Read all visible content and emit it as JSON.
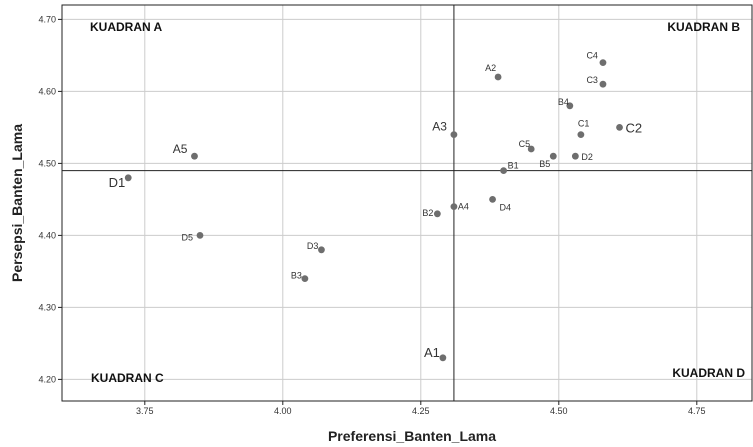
{
  "chart_data": {
    "type": "scatter",
    "title": "",
    "xlabel": "Preferensi_Banten_Lama",
    "ylabel": "Persepsi_Banten_Lama",
    "xlim": [
      3.6,
      4.85
    ],
    "ylim": [
      4.17,
      4.72
    ],
    "xticks": [
      "3.75",
      "4.00",
      "4.25",
      "4.50",
      "4.75"
    ],
    "yticks": [
      "4.20",
      "4.30",
      "4.40",
      "4.50",
      "4.60",
      "4.70"
    ],
    "grid": true,
    "reference_lines": {
      "x": 4.31,
      "y": 4.49
    },
    "quadrants": {
      "a": "KUADRAN A",
      "b": "KUADRAN B",
      "c": "KUADRAN C",
      "d": "KUADRAN D"
    },
    "point_color": "#6e6e6e",
    "line_color": "#222222",
    "grid_color": "#cccccc",
    "points": [
      {
        "label": "A1",
        "x": 4.29,
        "y": 4.23
      },
      {
        "label": "A2",
        "x": 4.39,
        "y": 4.62
      },
      {
        "label": "A3",
        "x": 4.31,
        "y": 4.54
      },
      {
        "label": "A4",
        "x": 4.31,
        "y": 4.44
      },
      {
        "label": "A5",
        "x": 3.84,
        "y": 4.51
      },
      {
        "label": "B1",
        "x": 4.4,
        "y": 4.49
      },
      {
        "label": "B2",
        "x": 4.28,
        "y": 4.43
      },
      {
        "label": "B3",
        "x": 4.04,
        "y": 4.34
      },
      {
        "label": "B4",
        "x": 4.52,
        "y": 4.58
      },
      {
        "label": "B5",
        "x": 4.49,
        "y": 4.51
      },
      {
        "label": "C1",
        "x": 4.54,
        "y": 4.54
      },
      {
        "label": "C2",
        "x": 4.61,
        "y": 4.55
      },
      {
        "label": "C3",
        "x": 4.58,
        "y": 4.61
      },
      {
        "label": "C4",
        "x": 4.58,
        "y": 4.64
      },
      {
        "label": "C5",
        "x": 4.45,
        "y": 4.52
      },
      {
        "label": "D1",
        "x": 3.72,
        "y": 4.48
      },
      {
        "label": "D2",
        "x": 4.53,
        "y": 4.51
      },
      {
        "label": "D3",
        "x": 4.07,
        "y": 4.38
      },
      {
        "label": "D4",
        "x": 4.38,
        "y": 4.45
      },
      {
        "label": "D5",
        "x": 3.85,
        "y": 4.4
      }
    ]
  }
}
